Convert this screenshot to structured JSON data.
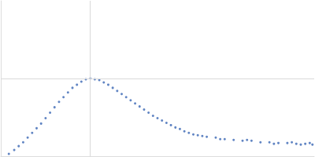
{
  "chart_data": {
    "type": "scatter",
    "color": "#3a66b4",
    "marker": "circle",
    "x": [
      0.09,
      0.15,
      0.2,
      0.25,
      0.3,
      0.35,
      0.4,
      0.45,
      0.5,
      0.55,
      0.6,
      0.65,
      0.7,
      0.75,
      0.8,
      0.85,
      0.9,
      0.95,
      1.0,
      1.05,
      1.1,
      1.15,
      1.2,
      1.25,
      1.3,
      1.35,
      1.4,
      1.45,
      1.5,
      1.55,
      1.6,
      1.65,
      1.7,
      1.75,
      1.8,
      1.85,
      1.9,
      1.95,
      2.0,
      2.05,
      2.1,
      2.15,
      2.2,
      2.25,
      2.3,
      2.4,
      2.45,
      2.5,
      2.6,
      2.7,
      2.75,
      2.8,
      2.9,
      3.0,
      3.05,
      3.1,
      3.2,
      3.25,
      3.3,
      3.35,
      3.4,
      3.45,
      3.48
    ],
    "values": [
      0.03,
      0.08,
      0.13,
      0.18,
      0.24,
      0.3,
      0.36,
      0.42,
      0.49,
      0.56,
      0.63,
      0.7,
      0.76,
      0.82,
      0.88,
      0.92,
      0.96,
      0.99,
      1.0,
      0.99,
      0.98,
      0.95,
      0.92,
      0.88,
      0.84,
      0.8,
      0.76,
      0.72,
      0.68,
      0.64,
      0.6,
      0.56,
      0.52,
      0.49,
      0.46,
      0.43,
      0.4,
      0.37,
      0.35,
      0.32,
      0.3,
      0.28,
      0.27,
      0.26,
      0.25,
      0.24,
      0.22,
      0.22,
      0.21,
      0.2,
      0.21,
      0.2,
      0.18,
      0.18,
      0.16,
      0.17,
      0.17,
      0.18,
      0.16,
      0.15,
      0.16,
      0.17,
      0.15
    ],
    "xlim": [
      0,
      3.5
    ],
    "ylim": [
      0,
      2
    ],
    "xticks": [
      1
    ],
    "yticks": [
      1
    ],
    "grid": true,
    "tick_labels": false
  }
}
